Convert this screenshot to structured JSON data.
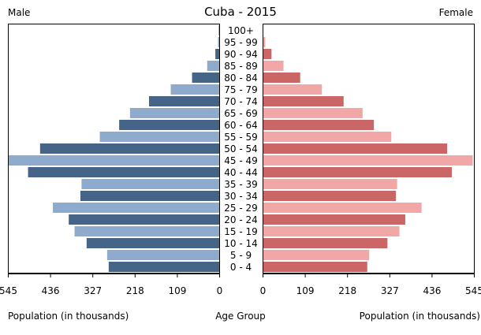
{
  "chart_data": {
    "type": "bar",
    "title": "Cuba - 2015",
    "left_label": "Male",
    "right_label": "Female",
    "age_axis_label": "Age Group",
    "male_axis_label": "Population (in thousands)",
    "female_axis_label": "Population (in thousands)",
    "ticks": [
      545,
      436,
      327,
      218,
      109,
      0
    ],
    "xlim": [
      0,
      545
    ],
    "grid": false,
    "categories": [
      "0 - 4",
      "5 - 9",
      "10 - 14",
      "15 - 19",
      "20 - 24",
      "25 - 29",
      "30 - 34",
      "35 - 39",
      "40 - 44",
      "45 - 49",
      "50 - 54",
      "55 - 59",
      "60 - 64",
      "65 - 69",
      "70 - 74",
      "75 - 79",
      "80 - 84",
      "85 - 89",
      "90 - 94",
      "95 - 99",
      "100+"
    ],
    "series": [
      {
        "name": "Male",
        "values": [
          285,
          289,
          342,
          373,
          388,
          429,
          358,
          355,
          493,
          545,
          462,
          308,
          258,
          230,
          181,
          125,
          70,
          31,
          10,
          3,
          1
        ]
      },
      {
        "name": "Female",
        "values": [
          270,
          275,
          322,
          353,
          368,
          410,
          344,
          347,
          488,
          542,
          476,
          332,
          287,
          258,
          209,
          153,
          97,
          54,
          23,
          7,
          1
        ]
      }
    ],
    "colors": {
      "male_dark": "#466487",
      "male_light": "#8eaacc",
      "female_dark": "#cb6666",
      "female_light": "#f2a7a7"
    }
  }
}
